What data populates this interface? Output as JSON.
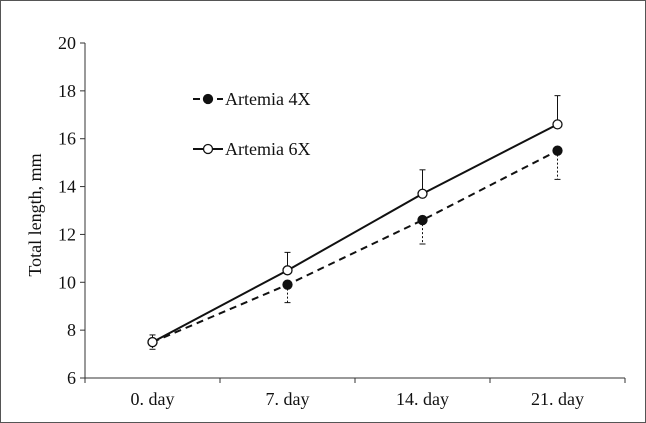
{
  "chart_data": {
    "type": "line",
    "categories": [
      "0. day",
      "7. day",
      "14. day",
      "21. day"
    ],
    "ylabel": "Total length, mm",
    "xlabel": "",
    "title": "",
    "ylim": [
      6,
      20
    ],
    "yticks": [
      6,
      8,
      10,
      12,
      14,
      16,
      18,
      20
    ],
    "grid": false,
    "legend_position": "upper-left",
    "series": [
      {
        "name": "Artemia 4X",
        "values": [
          7.5,
          9.9,
          12.6,
          15.5
        ],
        "errors": [
          0.3,
          0.75,
          1.0,
          1.2
        ],
        "marker": "filled-circle",
        "line_style": "dashed",
        "color": "#111111"
      },
      {
        "name": "Artemia 6X",
        "values": [
          7.5,
          10.5,
          13.7,
          16.6
        ],
        "errors": [
          0.3,
          0.75,
          1.0,
          1.2
        ],
        "marker": "open-circle",
        "line_style": "solid",
        "color": "#111111"
      }
    ]
  }
}
